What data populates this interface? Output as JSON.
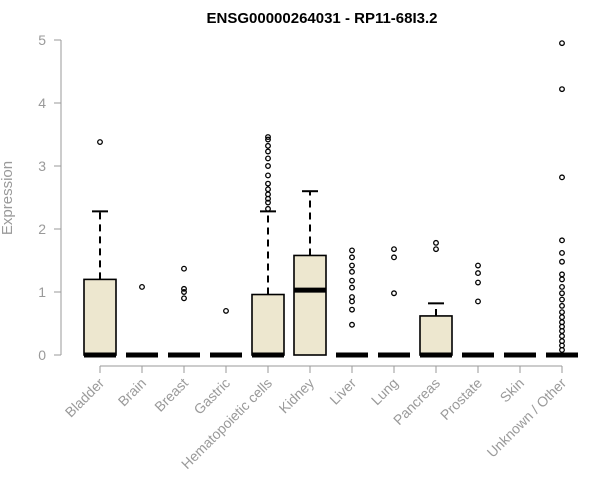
{
  "chart_data": {
    "type": "box",
    "title": "ENSG00000264031 - RP11-68I3.2",
    "ylabel": "Expression",
    "xlabel": "",
    "ylim": [
      0,
      5
    ],
    "yticks": [
      0,
      1,
      2,
      3,
      4,
      5
    ],
    "colors": {
      "box_fill": "#ede7cf",
      "stroke": "#000000",
      "axis": "#9a9a9a"
    },
    "categories": [
      "Bladder",
      "Brain",
      "Breast",
      "Gastric",
      "Hematopoietic cells",
      "Kidney",
      "Liver",
      "Lung",
      "Pancreas",
      "Prostate",
      "Skin",
      "Unknown / Other"
    ],
    "boxes": [
      {
        "name": "Bladder",
        "min": 0,
        "q1": 0,
        "median": 0,
        "q3": 1.2,
        "max": 2.28,
        "outliers": [
          3.38
        ]
      },
      {
        "name": "Brain",
        "min": 0,
        "q1": 0,
        "median": 0,
        "q3": 0,
        "max": 0,
        "outliers": [
          1.08
        ]
      },
      {
        "name": "Breast",
        "min": 0,
        "q1": 0,
        "median": 0,
        "q3": 0,
        "max": 0,
        "outliers": [
          0.9,
          1.0,
          1.05,
          1.37
        ]
      },
      {
        "name": "Gastric",
        "min": 0,
        "q1": 0,
        "median": 0,
        "q3": 0,
        "max": 0,
        "outliers": [
          0.7
        ]
      },
      {
        "name": "Hematopoietic cells",
        "min": 0,
        "q1": 0,
        "median": 0,
        "q3": 0.96,
        "max": 2.28,
        "outliers": [
          2.32,
          2.42,
          2.48,
          2.55,
          2.63,
          2.72,
          2.85,
          3.0,
          3.12,
          3.23,
          3.32,
          3.42,
          3.46
        ]
      },
      {
        "name": "Kidney",
        "min": 0,
        "q1": 0,
        "median": 1.03,
        "q3": 1.58,
        "max": 2.6,
        "outliers": []
      },
      {
        "name": "Liver",
        "min": 0,
        "q1": 0,
        "median": 0,
        "q3": 0,
        "max": 0,
        "outliers": [
          0.48,
          0.72,
          0.85,
          0.92,
          1.07,
          1.18,
          1.32,
          1.42,
          1.55,
          1.66
        ]
      },
      {
        "name": "Lung",
        "min": 0,
        "q1": 0,
        "median": 0,
        "q3": 0,
        "max": 0,
        "outliers": [
          0.98,
          1.55,
          1.68
        ]
      },
      {
        "name": "Pancreas",
        "min": 0,
        "q1": 0,
        "median": 0,
        "q3": 0.62,
        "max": 0.82,
        "outliers": [
          1.68,
          1.78
        ]
      },
      {
        "name": "Prostate",
        "min": 0,
        "q1": 0,
        "median": 0,
        "q3": 0,
        "max": 0,
        "outliers": [
          0.85,
          1.15,
          1.3,
          1.42
        ]
      },
      {
        "name": "Skin",
        "min": 0,
        "q1": 0,
        "median": 0,
        "q3": 0,
        "max": 0,
        "outliers": []
      },
      {
        "name": "Unknown / Other",
        "min": 0,
        "q1": 0,
        "median": 0,
        "q3": 0,
        "max": 0,
        "outliers": [
          0.08,
          0.15,
          0.22,
          0.3,
          0.38,
          0.45,
          0.52,
          0.6,
          0.68,
          0.78,
          0.88,
          0.98,
          1.08,
          1.2,
          1.28,
          1.48,
          1.62,
          1.82,
          2.82,
          4.22,
          4.95
        ]
      }
    ]
  }
}
